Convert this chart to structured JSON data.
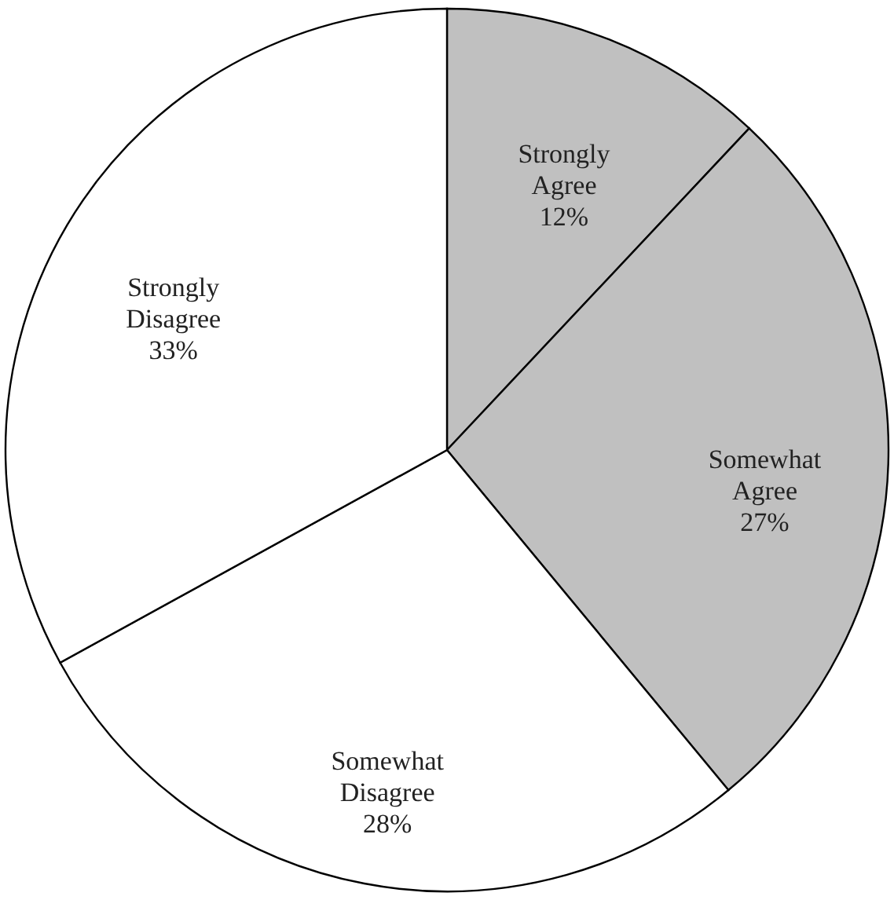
{
  "chart_data": {
    "type": "pie",
    "categories": [
      "Strongly Agree",
      "Somewhat Agree",
      "Somewhat Disagree",
      "Strongly Disagree"
    ],
    "values": [
      12,
      27,
      28,
      33
    ],
    "colors": [
      "#c0c0c0",
      "#c0c0c0",
      "#ffffff",
      "#ffffff"
    ],
    "value_labels": [
      "12%",
      "27%",
      "28%",
      "33%"
    ]
  }
}
